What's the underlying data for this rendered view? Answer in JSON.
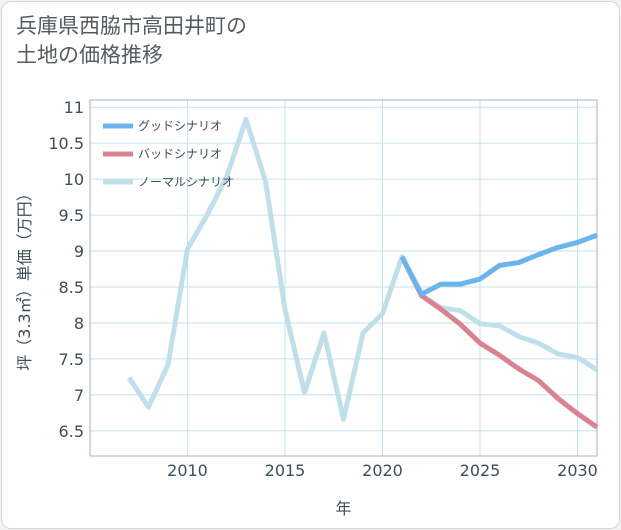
{
  "title": "兵庫県西脇市高田井町の\n土地の価格推移",
  "colors": {
    "good": "#6cb4ec",
    "bad": "#d8838f",
    "normal": "#bfdfeb",
    "grid": "#c5e1ea",
    "frame": "#a0b4bc"
  },
  "chart_data": {
    "type": "line",
    "title": "兵庫県西脇市高田井町の土地の価格推移",
    "xlabel": "年",
    "ylabel": "坪（3.3㎡）単価（万円）",
    "xlim": [
      2005,
      2031
    ],
    "ylim": [
      6.15,
      11.1
    ],
    "xticks": [
      2010,
      2015,
      2020,
      2025,
      2030
    ],
    "yticks": [
      6.5,
      7,
      7.5,
      8,
      8.5,
      9,
      9.5,
      10,
      10.5,
      11
    ],
    "legend_position": "top-left",
    "series": [
      {
        "name": "グッドシナリオ",
        "key": "good",
        "x": [
          2021,
          2022,
          2023,
          2024,
          2025,
          2026,
          2027,
          2028,
          2029,
          2030,
          2031
        ],
        "values": [
          8.92,
          8.4,
          8.54,
          8.54,
          8.61,
          8.8,
          8.84,
          8.95,
          9.05,
          9.12,
          9.22
        ]
      },
      {
        "name": "バッドシナリオ",
        "key": "bad",
        "x": [
          2021,
          2022,
          2023,
          2024,
          2025,
          2026,
          2027,
          2028,
          2029,
          2030,
          2031
        ],
        "values": [
          8.92,
          8.38,
          8.19,
          7.98,
          7.72,
          7.55,
          7.36,
          7.2,
          6.95,
          6.74,
          6.55
        ]
      },
      {
        "name": "ノーマルシナリオ",
        "key": "normal",
        "x": [
          2007,
          2008,
          2009,
          2010,
          2011,
          2012,
          2013,
          2014,
          2015,
          2016,
          2017,
          2018,
          2019,
          2020,
          2021,
          2022,
          2023,
          2024,
          2025,
          2026,
          2027,
          2028,
          2029,
          2030,
          2031
        ],
        "values": [
          7.24,
          6.83,
          7.42,
          9.03,
          9.5,
          10.03,
          10.83,
          9.97,
          8.19,
          7.03,
          7.86,
          6.66,
          7.86,
          8.13,
          8.92,
          8.38,
          8.21,
          8.17,
          7.99,
          7.96,
          7.81,
          7.72,
          7.57,
          7.52,
          7.35
        ]
      }
    ]
  }
}
